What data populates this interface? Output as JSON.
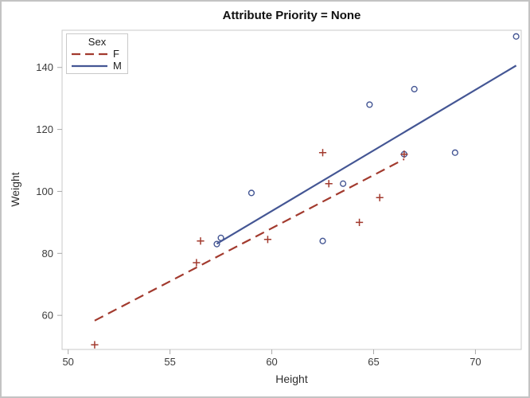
{
  "chart_data": {
    "type": "scatter",
    "title": "Attribute Priority = None",
    "xlabel": "Height",
    "ylabel": "Weight",
    "xlim": [
      49.7,
      72.25
    ],
    "ylim": [
      49.0,
      152.0
    ],
    "xticks": [
      50,
      55,
      60,
      65,
      70
    ],
    "yticks": [
      60,
      80,
      100,
      120,
      140
    ],
    "grid": false,
    "legend": {
      "title": "Sex",
      "position": "top-left",
      "entries": [
        {
          "label": "F",
          "color": "#A23A2E",
          "line_style": "dashed",
          "marker": "plus"
        },
        {
          "label": "M",
          "color": "#445694",
          "line_style": "solid",
          "marker": "circle"
        }
      ]
    },
    "series": [
      {
        "name": "M",
        "marker": "circle",
        "color": "#445694",
        "line_style": "solid",
        "points": [
          [
            57.3,
            83.0
          ],
          [
            57.5,
            85.0
          ],
          [
            59.0,
            99.5
          ],
          [
            62.5,
            84.0
          ],
          [
            63.5,
            102.5
          ],
          [
            64.8,
            128.0
          ],
          [
            66.5,
            112.0
          ],
          [
            67.0,
            133.0
          ],
          [
            69.0,
            112.5
          ],
          [
            72.0,
            150.0
          ]
        ],
        "fit_line": {
          "x": [
            57.3,
            72.0
          ],
          "y": [
            83.1,
            140.6
          ]
        }
      },
      {
        "name": "F",
        "marker": "plus",
        "color": "#A23A2E",
        "line_style": "dashed",
        "points": [
          [
            51.3,
            50.5
          ],
          [
            56.3,
            77.0
          ],
          [
            56.5,
            84.0
          ],
          [
            59.8,
            84.5
          ],
          [
            62.5,
            112.5
          ],
          [
            62.8,
            102.5
          ],
          [
            64.3,
            90.0
          ],
          [
            65.3,
            98.0
          ],
          [
            66.5,
            112.0
          ]
        ],
        "fit_line": {
          "x": [
            51.3,
            66.5
          ],
          "y": [
            58.3,
            110.4
          ]
        }
      }
    ],
    "style_colors": {
      "wall_border": "#c9c9c9",
      "tick": "#a9a9a9",
      "tick_label": "#3b3b3b"
    }
  }
}
